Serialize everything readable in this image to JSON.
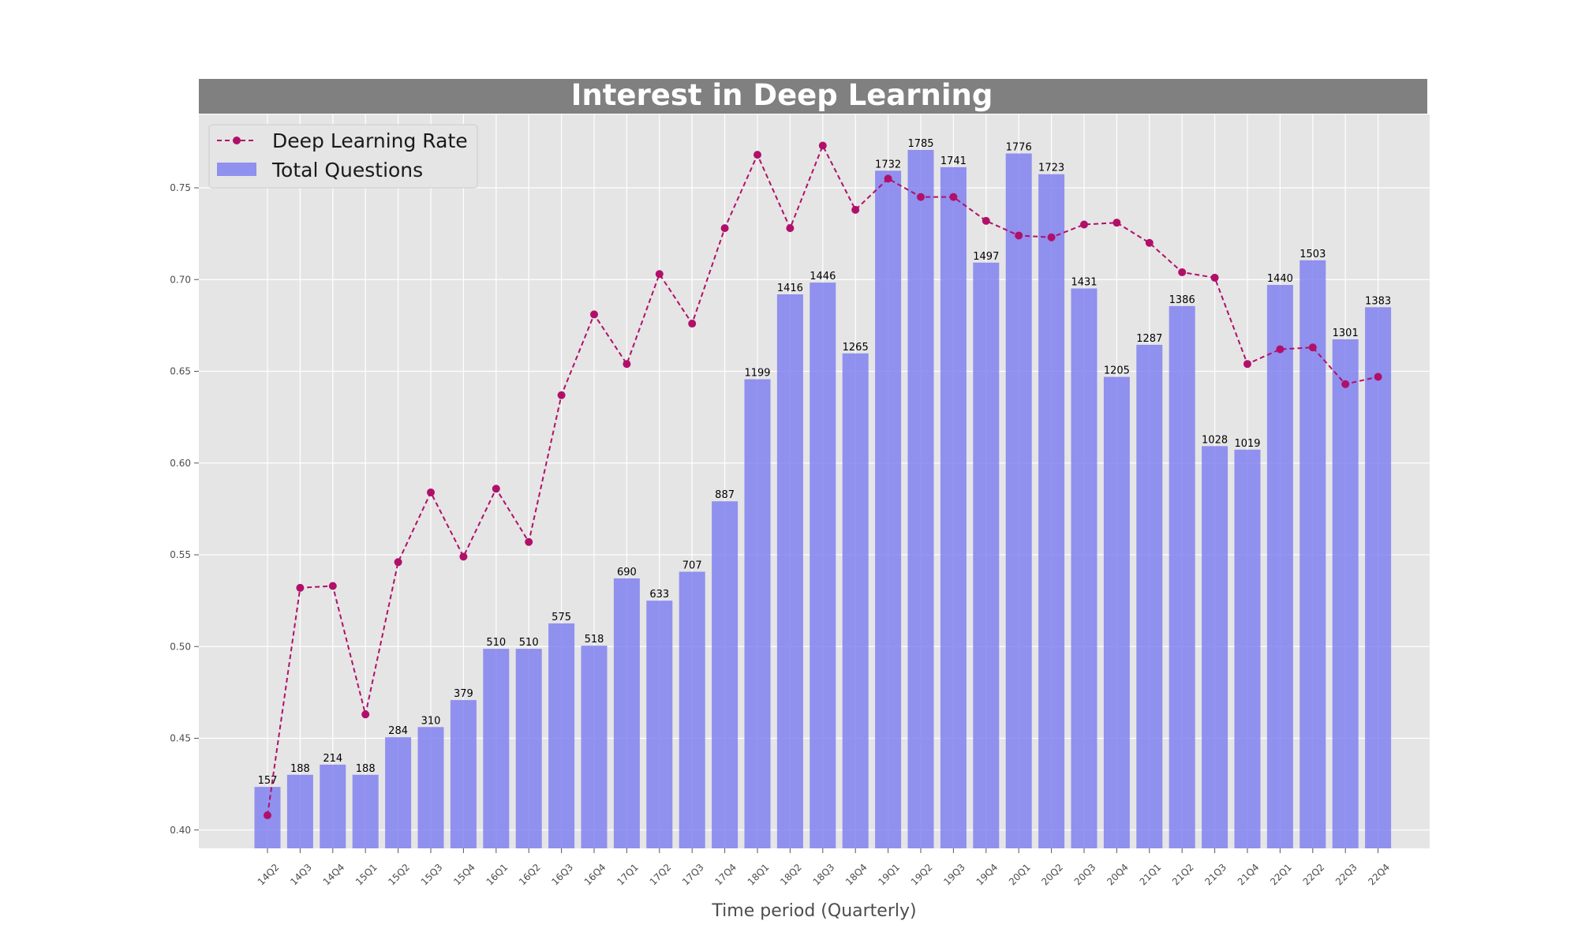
{
  "chart_data": {
    "type": "bar",
    "title": "Interest in Deep Learning",
    "xlabel": "Time period (Quarterly)",
    "ylabel": "",
    "categories": [
      "14Q2",
      "14Q3",
      "14Q4",
      "15Q1",
      "15Q2",
      "15Q3",
      "15Q4",
      "16Q1",
      "16Q2",
      "16Q3",
      "16Q4",
      "17Q1",
      "17Q2",
      "17Q3",
      "17Q4",
      "18Q1",
      "18Q2",
      "18Q3",
      "18Q4",
      "19Q1",
      "19Q2",
      "19Q3",
      "19Q4",
      "20Q1",
      "20Q2",
      "20Q3",
      "20Q4",
      "21Q1",
      "21Q2",
      "21Q3",
      "21Q4",
      "22Q1",
      "22Q2",
      "22Q3",
      "22Q4"
    ],
    "series": [
      {
        "name": "Total Questions",
        "kind": "bar",
        "color": "#7b7bf0",
        "values": [
          157,
          188,
          214,
          188,
          284,
          310,
          379,
          510,
          510,
          575,
          518,
          690,
          633,
          707,
          887,
          1199,
          1416,
          1446,
          1265,
          1732,
          1785,
          1741,
          1497,
          1776,
          1723,
          1431,
          1205,
          1287,
          1386,
          1028,
          1019,
          1440,
          1503,
          1301,
          1383
        ]
      },
      {
        "name": "Deep Learning Rate",
        "kind": "line",
        "color": "#b0106a",
        "values": [
          0.408,
          0.532,
          0.533,
          0.463,
          0.546,
          0.584,
          0.549,
          0.586,
          0.557,
          0.637,
          0.681,
          0.654,
          0.703,
          0.676,
          0.728,
          0.768,
          0.728,
          0.773,
          0.738,
          0.755,
          0.745,
          0.745,
          0.732,
          0.724,
          0.723,
          0.73,
          0.731,
          0.72,
          0.704,
          0.701,
          0.654,
          0.662,
          0.663,
          0.643,
          0.647
        ]
      }
    ],
    "yticks": [
      "0.40",
      "0.45",
      "0.50",
      "0.55",
      "0.60",
      "0.65",
      "0.70",
      "0.75"
    ],
    "ylim": [
      0.39,
      0.79
    ],
    "bar_scale_max": 1785,
    "grid": true,
    "legend_position": "top-left",
    "colors": {
      "background": "#e5e5e5",
      "title_bar": "#808080",
      "grid": "#ffffff"
    }
  }
}
